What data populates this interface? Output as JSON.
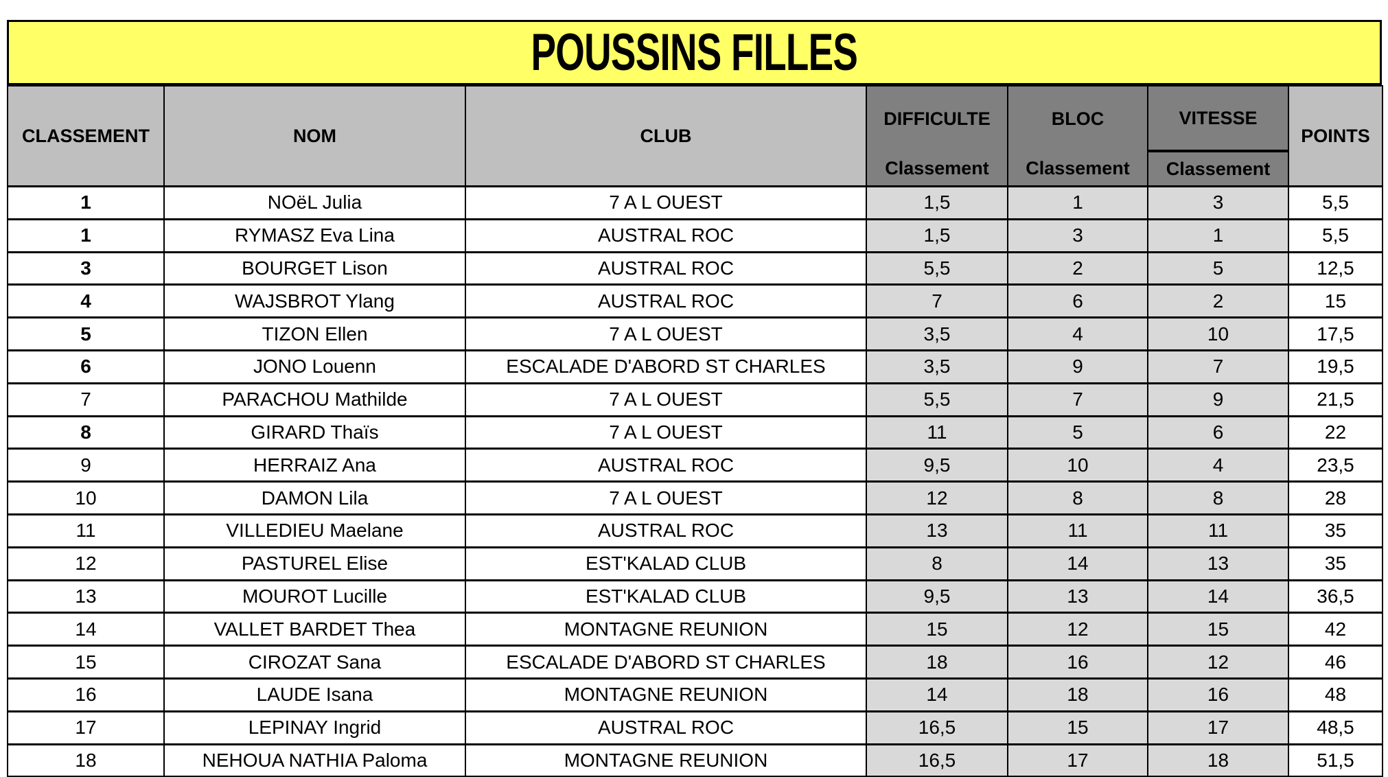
{
  "title": "POUSSINS FILLES",
  "headers": {
    "classement": "CLASSEMENT",
    "nom": "NOM",
    "club": "CLUB",
    "difficulte": "DIFFICULTE",
    "bloc": "BLOC",
    "vitesse": "VITESSE",
    "points": "POINTS",
    "sub": "Classement"
  },
  "colors": {
    "title_bg": "#ffff66",
    "header_bg": "#bfbfbf",
    "header_dark": "#808080",
    "score_bg": "#d9d9d9"
  },
  "rows": [
    {
      "rank": "1",
      "bold": true,
      "nom": "NOëL Julia",
      "club": "7 A L OUEST",
      "diff": "1,5",
      "bloc": "1",
      "vit": "3",
      "pts": "5,5"
    },
    {
      "rank": "1",
      "bold": true,
      "nom": "RYMASZ Eva Lina",
      "club": "AUSTRAL ROC",
      "diff": "1,5",
      "bloc": "3",
      "vit": "1",
      "pts": "5,5"
    },
    {
      "rank": "3",
      "bold": true,
      "nom": "BOURGET Lison",
      "club": "AUSTRAL ROC",
      "diff": "5,5",
      "bloc": "2",
      "vit": "5",
      "pts": "12,5"
    },
    {
      "rank": "4",
      "bold": true,
      "nom": "WAJSBROT Ylang",
      "club": "AUSTRAL ROC",
      "diff": "7",
      "bloc": "6",
      "vit": "2",
      "pts": "15"
    },
    {
      "rank": "5",
      "bold": true,
      "nom": "TIZON Ellen",
      "club": "7 A L OUEST",
      "diff": "3,5",
      "bloc": "4",
      "vit": "10",
      "pts": "17,5"
    },
    {
      "rank": "6",
      "bold": true,
      "nom": "JONO Louenn",
      "club": "ESCALADE D'ABORD ST CHARLES",
      "diff": "3,5",
      "bloc": "9",
      "vit": "7",
      "pts": "19,5"
    },
    {
      "rank": "7",
      "bold": false,
      "nom": "PARACHOU Mathilde",
      "club": "7 A L OUEST",
      "diff": "5,5",
      "bloc": "7",
      "vit": "9",
      "pts": "21,5"
    },
    {
      "rank": "8",
      "bold": true,
      "nom": "GIRARD Thaïs",
      "club": "7 A L OUEST",
      "diff": "11",
      "bloc": "5",
      "vit": "6",
      "pts": "22"
    },
    {
      "rank": "9",
      "bold": false,
      "nom": "HERRAIZ Ana",
      "club": "AUSTRAL ROC",
      "diff": "9,5",
      "bloc": "10",
      "vit": "4",
      "pts": "23,5"
    },
    {
      "rank": "10",
      "bold": false,
      "nom": "DAMON Lila",
      "club": "7 A L OUEST",
      "diff": "12",
      "bloc": "8",
      "vit": "8",
      "pts": "28"
    },
    {
      "rank": "11",
      "bold": false,
      "nom": "VILLEDIEU Maelane",
      "club": "AUSTRAL ROC",
      "diff": "13",
      "bloc": "11",
      "vit": "11",
      "pts": "35"
    },
    {
      "rank": "12",
      "bold": false,
      "nom": "PASTUREL Elise",
      "club": "EST'KALAD CLUB",
      "diff": "8",
      "bloc": "14",
      "vit": "13",
      "pts": "35"
    },
    {
      "rank": "13",
      "bold": false,
      "nom": "MOUROT Lucille",
      "club": "EST'KALAD CLUB",
      "diff": "9,5",
      "bloc": "13",
      "vit": "14",
      "pts": "36,5"
    },
    {
      "rank": "14",
      "bold": false,
      "nom": "VALLET BARDET Thea",
      "club": "MONTAGNE REUNION",
      "diff": "15",
      "bloc": "12",
      "vit": "15",
      "pts": "42"
    },
    {
      "rank": "15",
      "bold": false,
      "nom": "CIROZAT Sana",
      "club": "ESCALADE D'ABORD ST CHARLES",
      "diff": "18",
      "bloc": "16",
      "vit": "12",
      "pts": "46"
    },
    {
      "rank": "16",
      "bold": false,
      "nom": "LAUDE Isana",
      "club": "MONTAGNE REUNION",
      "diff": "14",
      "bloc": "18",
      "vit": "16",
      "pts": "48"
    },
    {
      "rank": "17",
      "bold": false,
      "nom": "LEPINAY Ingrid",
      "club": "AUSTRAL ROC",
      "diff": "16,5",
      "bloc": "15",
      "vit": "17",
      "pts": "48,5"
    },
    {
      "rank": "18",
      "bold": false,
      "nom": "NEHOUA NATHIA Paloma",
      "club": "MONTAGNE REUNION",
      "diff": "16,5",
      "bloc": "17",
      "vit": "18",
      "pts": "51,5"
    }
  ]
}
